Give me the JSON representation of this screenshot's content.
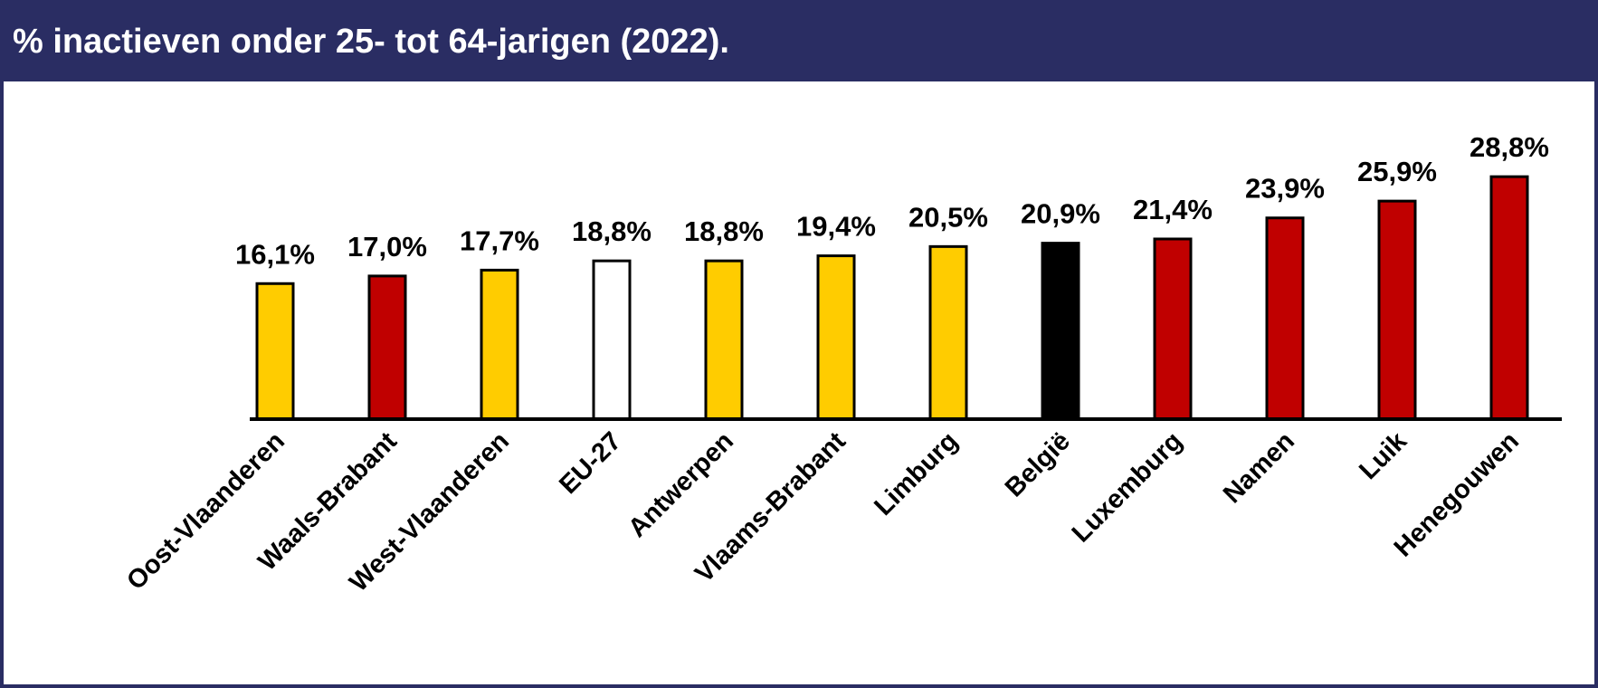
{
  "chart_data": {
    "type": "bar",
    "title": "% inactieven onder 25- tot 64-jarigen (2022).",
    "categories": [
      "Oost-Vlaanderen",
      "Waals-Brabant",
      "West-Vlaanderen",
      "EU-27",
      "Antwerpen",
      "Vlaams-Brabant",
      "Limburg",
      "België",
      "Luxemburg",
      "Namen",
      "Luik",
      "Henegouwen"
    ],
    "values": [
      16.1,
      17.0,
      17.7,
      18.8,
      18.8,
      19.4,
      20.5,
      20.9,
      21.4,
      23.9,
      25.9,
      28.8
    ],
    "value_labels": [
      "16,1%",
      "17,0%",
      "17,7%",
      "18,8%",
      "18,8%",
      "19,4%",
      "20,5%",
      "20,9%",
      "21,4%",
      "23,9%",
      "25,9%",
      "28,8%"
    ],
    "colors": [
      "#ffcc00",
      "#c00000",
      "#ffcc00",
      "#ffffff",
      "#ffcc00",
      "#ffcc00",
      "#ffcc00",
      "#000000",
      "#c00000",
      "#c00000",
      "#c00000",
      "#c00000"
    ],
    "ylim": [
      0,
      40
    ]
  }
}
